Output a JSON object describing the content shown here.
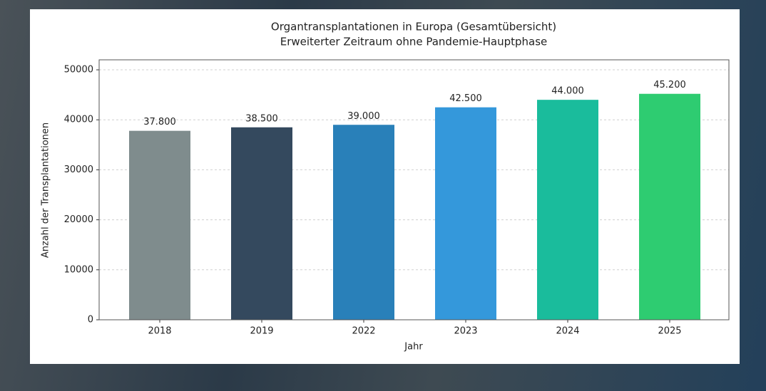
{
  "chart_data": {
    "type": "bar",
    "title": "Organtransplantationen in Europa (Gesamtübersicht)",
    "subtitle": "Erweiterter Zeitraum ohne Pandemie-Hauptphase",
    "x_label": "Jahr",
    "y_label": "Anzahl der Transplantationen",
    "categories": [
      "2018",
      "2019",
      "2022",
      "2023",
      "2024",
      "2025"
    ],
    "values": [
      37800,
      38500,
      39000,
      42500,
      44000,
      45200
    ],
    "value_labels": [
      "37.800",
      "38.500",
      "39.000",
      "42.500",
      "44.000",
      "45.200"
    ],
    "colors": [
      "#7f8c8d",
      "#34495e",
      "#2980b9",
      "#3498db",
      "#1abc9c",
      "#2ecc71"
    ],
    "ylim": [
      0,
      52000
    ],
    "yticks": [
      0,
      10000,
      20000,
      30000,
      40000,
      50000
    ],
    "grid": true
  }
}
